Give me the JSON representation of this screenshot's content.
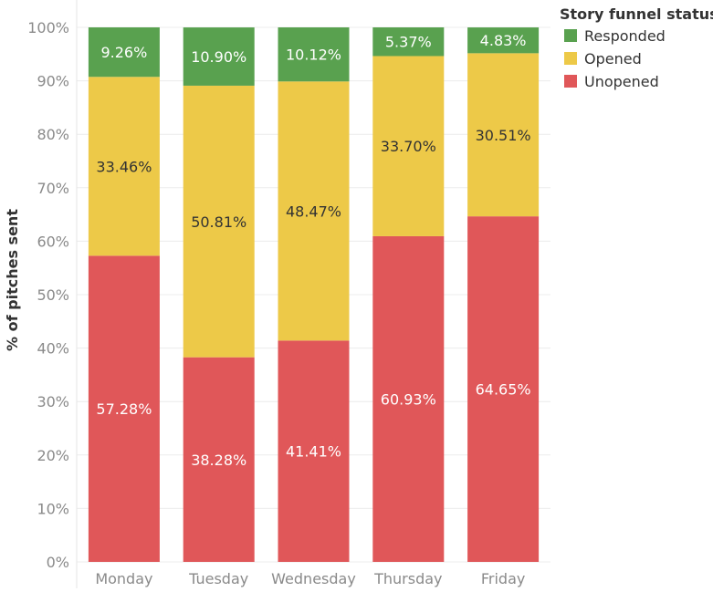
{
  "chart_data": {
    "type": "bar",
    "stacked": true,
    "categories": [
      "Monday",
      "Tuesday",
      "Wednesday",
      "Thursday",
      "Friday"
    ],
    "series": [
      {
        "name": "Unopened",
        "color": "#e05759",
        "label_color": "#ffffff",
        "values": [
          57.28,
          38.28,
          41.41,
          60.93,
          64.65
        ],
        "labels": [
          "57.28%",
          "38.28%",
          "41.41%",
          "60.93%",
          "64.65%"
        ]
      },
      {
        "name": "Opened",
        "color": "#edc948",
        "label_color": "#333333",
        "values": [
          33.46,
          50.81,
          48.47,
          33.7,
          30.51
        ],
        "labels": [
          "33.46%",
          "50.81%",
          "48.47%",
          "33.70%",
          "30.51%"
        ]
      },
      {
        "name": "Responded",
        "color": "#59a14f",
        "label_color": "#ffffff",
        "values": [
          9.26,
          10.9,
          10.12,
          5.37,
          4.83
        ],
        "labels": [
          "9.26%",
          "10.90%",
          "10.12%",
          "5.37%",
          "4.83%"
        ]
      }
    ],
    "ylabel": "% of pitches sent",
    "ylim": [
      0,
      100
    ],
    "yticks": [
      "0%",
      "10%",
      "20%",
      "30%",
      "40%",
      "50%",
      "60%",
      "70%",
      "80%",
      "90%",
      "100%"
    ],
    "grid": true,
    "legend": {
      "title": "Story funnel status",
      "position": "top-right",
      "order": [
        "Responded",
        "Opened",
        "Unopened"
      ]
    }
  }
}
